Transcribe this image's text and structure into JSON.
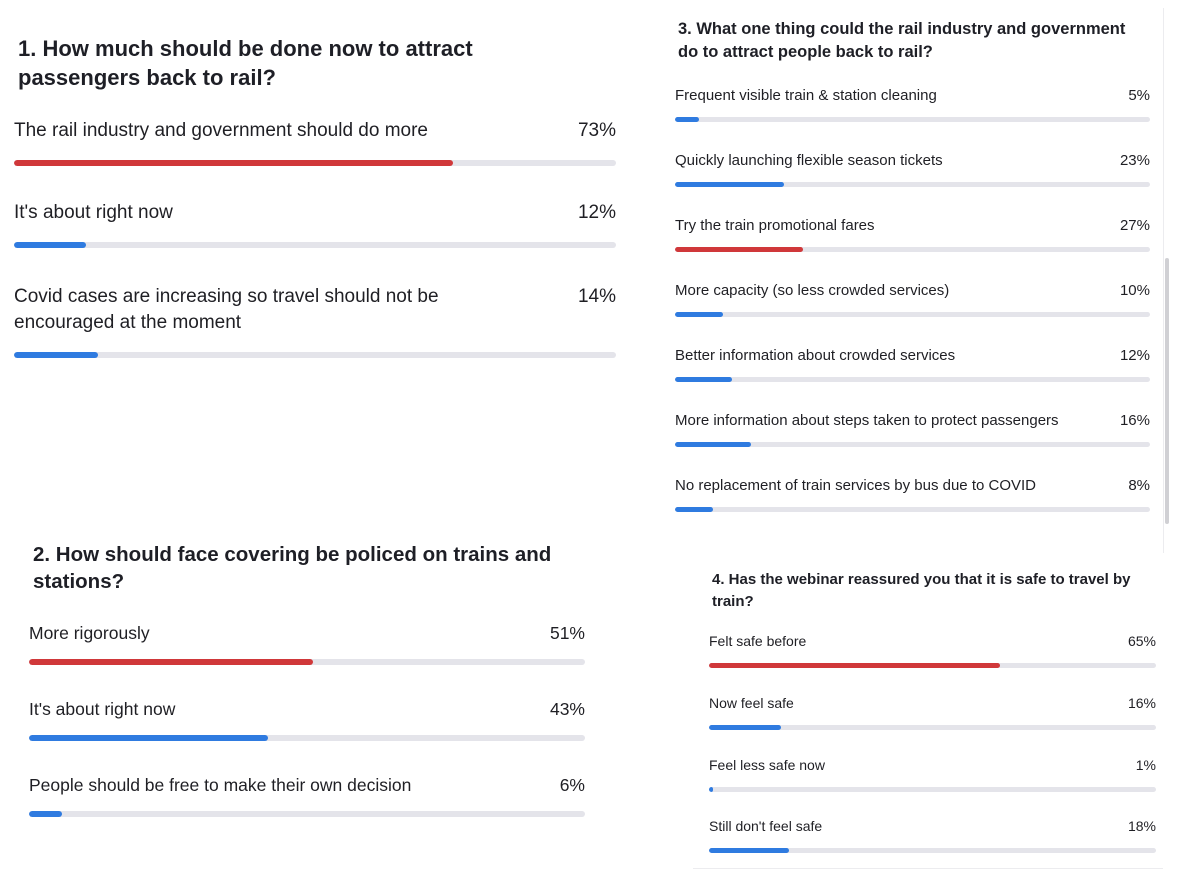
{
  "colors": {
    "highlight": "#d0383a",
    "normal": "#2f7be0",
    "track": "#e4e4ea"
  },
  "polls": {
    "q1": {
      "title": "1. How much should be done now to attract passengers back to rail?",
      "options": [
        {
          "label": "The rail industry and government should do more",
          "pct_label": "73%",
          "value": 0.73,
          "highlight": true
        },
        {
          "label": "It's about right now",
          "pct_label": "12%",
          "value": 0.12,
          "highlight": false
        },
        {
          "label": "Covid cases are increasing so travel should not be encouraged at the moment",
          "pct_label": "14%",
          "value": 0.14,
          "highlight": false
        }
      ]
    },
    "q2": {
      "title": "2. How should face covering be policed on trains and stations?",
      "options": [
        {
          "label": "More rigorously",
          "pct_label": "51%",
          "value": 0.51,
          "highlight": true
        },
        {
          "label": "It's about right now",
          "pct_label": "43%",
          "value": 0.43,
          "highlight": false
        },
        {
          "label": "People should be free to make their own decision",
          "pct_label": "6%",
          "value": 0.06,
          "highlight": false
        }
      ]
    },
    "q3": {
      "title": "3. What one thing could the rail industry and government do to attract people back to rail?",
      "options": [
        {
          "label": "Frequent visible train & station cleaning",
          "pct_label": "5%",
          "value": 0.05,
          "highlight": false
        },
        {
          "label": "Quickly launching flexible season tickets",
          "pct_label": "23%",
          "value": 0.23,
          "highlight": false
        },
        {
          "label": "Try the train promotional fares",
          "pct_label": "27%",
          "value": 0.27,
          "highlight": true
        },
        {
          "label": "More capacity (so less crowded services)",
          "pct_label": "10%",
          "value": 0.1,
          "highlight": false
        },
        {
          "label": "Better information about crowded services",
          "pct_label": "12%",
          "value": 0.12,
          "highlight": false
        },
        {
          "label": "More information about steps taken to protect passengers",
          "pct_label": "16%",
          "value": 0.16,
          "highlight": false
        },
        {
          "label": "No replacement of train services by bus due to COVID",
          "pct_label": "8%",
          "value": 0.08,
          "highlight": false
        }
      ]
    },
    "q4": {
      "title": "4. Has the webinar reassured you that it is safe to travel by train?",
      "options": [
        {
          "label": "Felt safe before",
          "pct_label": "65%",
          "value": 0.65,
          "highlight": true
        },
        {
          "label": "Now feel safe",
          "pct_label": "16%",
          "value": 0.16,
          "highlight": false
        },
        {
          "label": "Feel less safe now",
          "pct_label": "1%",
          "value": 0.01,
          "highlight": false
        },
        {
          "label": "Still don't feel safe",
          "pct_label": "18%",
          "value": 0.18,
          "highlight": false
        }
      ]
    }
  }
}
